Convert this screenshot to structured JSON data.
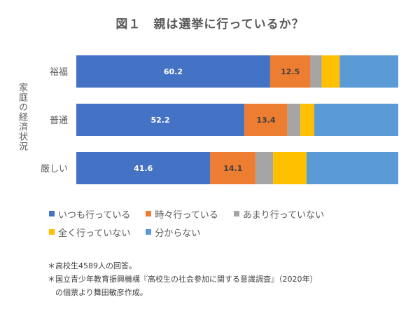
{
  "chart_data": {
    "type": "bar",
    "orientation": "horizontal",
    "stacked": "100%",
    "title": "図１　親は選挙に行っているか？",
    "ylabel": "家庭の経済状況",
    "xlabel": "",
    "xlim": [
      0,
      100
    ],
    "grid": false,
    "legend_position": "bottom",
    "categories": [
      "裕福",
      "普通",
      "厳しい"
    ],
    "series": [
      {
        "name": "いつも行っている",
        "color": "#4472C4",
        "values": [
          60.2,
          52.2,
          41.6
        ],
        "labels": [
          "60.2",
          "52.2",
          "41.6"
        ]
      },
      {
        "name": "時々行っている",
        "color": "#ED7D31",
        "values": [
          12.5,
          13.4,
          14.1
        ],
        "labels": [
          "12.5",
          "13.4",
          "14.1"
        ]
      },
      {
        "name": "あまり行っていない",
        "color": "#A5A5A5",
        "values": [
          3.5,
          4.0,
          5.4
        ]
      },
      {
        "name": "全く行っていない",
        "color": "#FFC000",
        "values": [
          5.6,
          4.3,
          10.4
        ]
      },
      {
        "name": "分からない",
        "color": "#5B9BD5",
        "values": [
          18.2,
          26.1,
          28.5
        ]
      }
    ]
  },
  "notes": [
    "＊高校生4589人の回答。",
    "＊国立青少年教育振興機構『高校生の社会参加に関する意識調査』（2020年）",
    "　の個票より舞田敏彦作成。"
  ]
}
